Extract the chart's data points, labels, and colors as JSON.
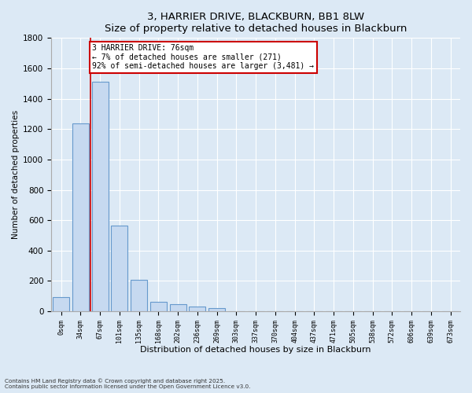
{
  "title": "3, HARRIER DRIVE, BLACKBURN, BB1 8LW",
  "subtitle": "Size of property relative to detached houses in Blackburn",
  "xlabel": "Distribution of detached houses by size in Blackburn",
  "ylabel": "Number of detached properties",
  "bar_labels": [
    "0sqm",
    "34sqm",
    "67sqm",
    "101sqm",
    "135sqm",
    "168sqm",
    "202sqm",
    "236sqm",
    "269sqm",
    "303sqm",
    "337sqm",
    "370sqm",
    "404sqm",
    "437sqm",
    "471sqm",
    "505sqm",
    "538sqm",
    "572sqm",
    "606sqm",
    "639sqm",
    "673sqm"
  ],
  "bar_values": [
    95,
    1235,
    1510,
    565,
    210,
    65,
    48,
    30,
    22,
    0,
    0,
    0,
    0,
    0,
    0,
    0,
    0,
    0,
    0,
    0,
    0
  ],
  "bar_color": "#c6d9f0",
  "bar_edge_color": "#6699cc",
  "vline_color": "#cc0000",
  "annotation_title": "3 HARRIER DRIVE: 76sqm",
  "annotation_line1": "← 7% of detached houses are smaller (271)",
  "annotation_line2": "92% of semi-detached houses are larger (3,481) →",
  "annotation_box_color": "#ffffff",
  "annotation_box_edge": "#cc0000",
  "ylim": [
    0,
    1800
  ],
  "yticks": [
    0,
    200,
    400,
    600,
    800,
    1000,
    1200,
    1400,
    1600,
    1800
  ],
  "bg_color": "#dce9f5",
  "grid_color": "#ffffff",
  "footnote1": "Contains HM Land Registry data © Crown copyright and database right 2025.",
  "footnote2": "Contains public sector information licensed under the Open Government Licence v3.0."
}
